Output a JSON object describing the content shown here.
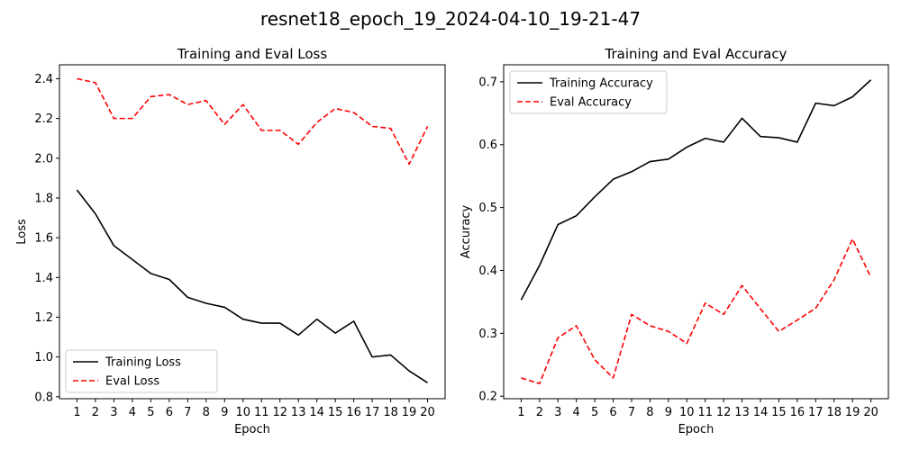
{
  "figure": {
    "suptitle": "resnet18_epoch_19_2024-04-10_19-21-47"
  },
  "colors": {
    "training": "#000000",
    "eval": "#ff0000"
  },
  "chart_data": [
    {
      "type": "line",
      "title": "Training and Eval Loss",
      "xlabel": "Epoch",
      "ylabel": "Loss",
      "x": [
        1,
        2,
        3,
        4,
        5,
        6,
        7,
        8,
        9,
        10,
        11,
        12,
        13,
        14,
        15,
        16,
        17,
        18,
        19,
        20
      ],
      "xlim": [
        0.05,
        20.95
      ],
      "ylim": [
        0.79,
        2.47
      ],
      "yticks": [
        0.8,
        1.0,
        1.2,
        1.4,
        1.6,
        1.8,
        2.0,
        2.2,
        2.4
      ],
      "ytick_labels": [
        "0.8",
        "1.0",
        "1.2",
        "1.4",
        "1.6",
        "1.8",
        "2.0",
        "2.2",
        "2.4"
      ],
      "grid": false,
      "legend_position": "lower-left",
      "series": [
        {
          "name": "Training Loss",
          "style": "solid",
          "color": "#000000",
          "values": [
            1.84,
            1.72,
            1.56,
            1.49,
            1.42,
            1.39,
            1.3,
            1.27,
            1.25,
            1.19,
            1.17,
            1.17,
            1.11,
            1.19,
            1.12,
            1.18,
            1.0,
            1.01,
            0.93,
            0.87
          ]
        },
        {
          "name": "Eval Loss",
          "style": "dashed",
          "color": "#ff0000",
          "values": [
            2.4,
            2.38,
            2.2,
            2.2,
            2.31,
            2.32,
            2.27,
            2.29,
            2.17,
            2.27,
            2.14,
            2.14,
            2.07,
            2.18,
            2.25,
            2.23,
            2.16,
            2.15,
            1.97,
            2.16
          ]
        }
      ]
    },
    {
      "type": "line",
      "title": "Training and Eval Accuracy",
      "xlabel": "Epoch",
      "ylabel": "Accuracy",
      "x": [
        1,
        2,
        3,
        4,
        5,
        6,
        7,
        8,
        9,
        10,
        11,
        12,
        13,
        14,
        15,
        16,
        17,
        18,
        19,
        20
      ],
      "xlim": [
        0.05,
        20.95
      ],
      "ylim": [
        0.196,
        0.727
      ],
      "yticks": [
        0.2,
        0.3,
        0.4,
        0.5,
        0.6,
        0.7
      ],
      "ytick_labels": [
        "0.2",
        "0.3",
        "0.4",
        "0.5",
        "0.6",
        "0.7"
      ],
      "grid": false,
      "legend_position": "upper-left",
      "series": [
        {
          "name": "Training Accuracy",
          "style": "solid",
          "color": "#000000",
          "values": [
            0.353,
            0.408,
            0.473,
            0.487,
            0.517,
            0.545,
            0.557,
            0.573,
            0.577,
            0.596,
            0.61,
            0.604,
            0.642,
            0.613,
            0.611,
            0.604,
            0.666,
            0.662,
            0.676,
            0.703
          ]
        },
        {
          "name": "Eval Accuracy",
          "style": "dashed",
          "color": "#ff0000",
          "values": [
            0.229,
            0.22,
            0.293,
            0.312,
            0.258,
            0.229,
            0.33,
            0.312,
            0.303,
            0.284,
            0.348,
            0.33,
            0.376,
            0.339,
            0.303,
            0.321,
            0.34,
            0.385,
            0.45,
            0.389
          ]
        }
      ]
    }
  ]
}
